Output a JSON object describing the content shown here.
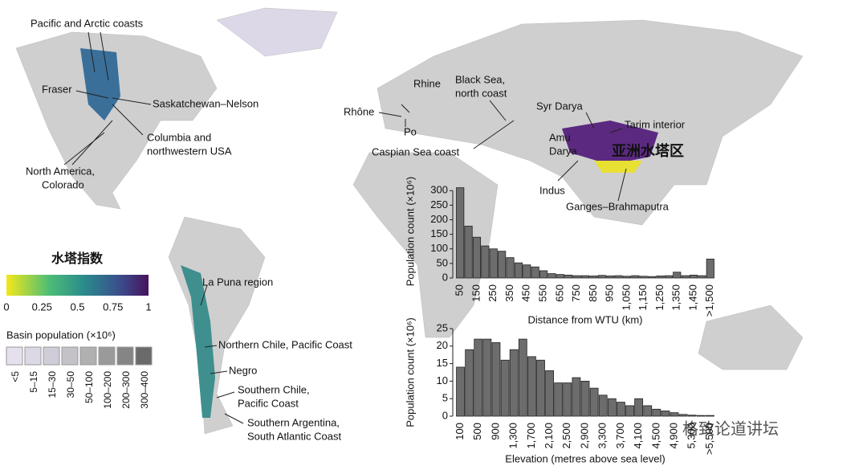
{
  "chart_data": [
    {
      "type": "bar",
      "color": "#6d6d6d",
      "xlabel": "Distance from WTU (km)",
      "ylabel": "Population count (×10⁶)",
      "categories": [
        "50",
        null,
        "150",
        null,
        "250",
        null,
        "350",
        null,
        "450",
        null,
        "550",
        null,
        "650",
        null,
        "750",
        null,
        "850",
        null,
        "950",
        null,
        "1,050",
        null,
        "1,150",
        null,
        "1,250",
        null,
        "1,350",
        null,
        "1,450",
        null,
        ">1,500"
      ],
      "values": [
        310,
        178,
        140,
        110,
        100,
        92,
        70,
        52,
        45,
        38,
        25,
        15,
        12,
        10,
        8,
        8,
        7,
        9,
        7,
        8,
        6,
        8,
        6,
        5,
        7,
        8,
        20,
        8,
        10,
        8,
        65
      ],
      "ylim": [
        0,
        320
      ],
      "yticks": [
        0,
        50,
        100,
        150,
        200,
        250,
        300
      ]
    },
    {
      "type": "bar",
      "color": "#6d6d6d",
      "xlabel": "Elevation (metres above sea level)",
      "ylabel": "Population count (×10⁶)",
      "categories": [
        "100",
        null,
        "500",
        null,
        "900",
        null,
        "1,300",
        null,
        "1,700",
        null,
        "2,100",
        null,
        "2,500",
        null,
        "2,900",
        null,
        "3,300",
        null,
        "3,700",
        null,
        "4,100",
        null,
        "4,500",
        null,
        "4,900",
        null,
        "5,300",
        null,
        ">5,500"
      ],
      "values": [
        14,
        19,
        22,
        22,
        21,
        16,
        19,
        22,
        17,
        16,
        13,
        9.5,
        9.5,
        11,
        10,
        8,
        6,
        5,
        4,
        3,
        5,
        3,
        2,
        1.5,
        1,
        0.5,
        0.3,
        0.2,
        0.2
      ],
      "ylim": [
        0,
        25
      ],
      "yticks": [
        0,
        5,
        10,
        15,
        20,
        25
      ]
    }
  ],
  "map": {
    "highlight": "亚洲水塔区",
    "labels": [
      {
        "text": [
          "Pacific and Arctic coasts"
        ]
      },
      {
        "text": [
          "Fraser"
        ]
      },
      {
        "text": [
          "Saskatchewan–Nelson"
        ]
      },
      {
        "text": [
          "Columbia and",
          "northwestern USA"
        ]
      },
      {
        "text": [
          "North America,",
          "Colorado"
        ]
      },
      {
        "text": [
          "Rhine"
        ]
      },
      {
        "text": [
          "Rhône"
        ]
      },
      {
        "text": [
          "Po"
        ]
      },
      {
        "text": [
          "Black Sea,",
          "north coast"
        ]
      },
      {
        "text": [
          "Caspian Sea coast"
        ]
      },
      {
        "text": [
          "Syr Darya"
        ]
      },
      {
        "text": [
          "Tarim interior"
        ]
      },
      {
        "text": [
          "Amu",
          "Darya"
        ]
      },
      {
        "text": [
          "Indus"
        ]
      },
      {
        "text": [
          "Ganges–Brahmaputra"
        ]
      },
      {
        "text": [
          "La Puna region"
        ]
      },
      {
        "text": [
          "Northern Chile, Pacific Coast"
        ]
      },
      {
        "text": [
          "Negro"
        ]
      },
      {
        "text": [
          "Southern Chile,",
          "Pacific Coast"
        ]
      },
      {
        "text": [
          "Southern Argentina,",
          "South Atlantic Coast"
        ]
      }
    ],
    "colorbar": {
      "title": "水塔指数",
      "ticks": [
        "0",
        "0.25",
        "0.5",
        "0.75",
        "1"
      ]
    },
    "population_legend": {
      "title": "Basin population (×10⁶)",
      "labels": [
        "<5",
        "5–15",
        "15–30",
        "30–50",
        "50–100",
        "100–200",
        "200–300",
        "300–400"
      ]
    },
    "watermark": "格致论道讲坛"
  }
}
